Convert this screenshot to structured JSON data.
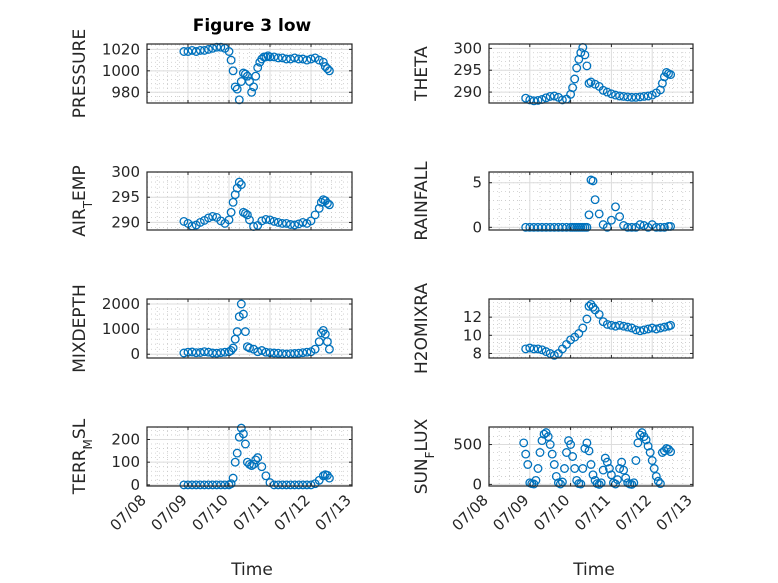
{
  "figure": {
    "title": "Figure 3 low",
    "xlabel": "Time",
    "marker_color": "#0072BD",
    "grid": true,
    "minor_grid": true
  },
  "chart_data": [
    {
      "type": "scatter",
      "ylabel": "PRESSURE",
      "ylim": [
        970,
        1025
      ],
      "yticks": [
        980,
        1000,
        1020
      ],
      "xlim": [
        0,
        5
      ],
      "xticks": [],
      "x": [
        0.9,
        1.0,
        1.1,
        1.2,
        1.3,
        1.4,
        1.5,
        1.6,
        1.7,
        1.8,
        1.9,
        2.0,
        2.05,
        2.1,
        2.15,
        2.2,
        2.25,
        2.3,
        2.35,
        2.4,
        2.45,
        2.5,
        2.55,
        2.6,
        2.65,
        2.7,
        2.75,
        2.8,
        2.85,
        2.9,
        2.95,
        3.0,
        3.1,
        3.2,
        3.3,
        3.4,
        3.5,
        3.6,
        3.7,
        3.8,
        3.9,
        4.0,
        4.1,
        4.2,
        4.3,
        4.35,
        4.4,
        4.45
      ],
      "y": [
        1018,
        1018,
        1019,
        1018,
        1019,
        1019,
        1020,
        1021,
        1022,
        1022,
        1021,
        1018,
        1010,
        1000,
        985,
        983,
        973,
        990,
        998,
        997,
        995,
        990,
        980,
        985,
        995,
        1003,
        1008,
        1011,
        1013,
        1013,
        1014,
        1013,
        1013,
        1012,
        1012,
        1011,
        1011,
        1012,
        1011,
        1011,
        1010,
        1011,
        1012,
        1010,
        1008,
        1004,
        1002,
        1000
      ]
    },
    {
      "type": "scatter",
      "ylabel": "THETA",
      "ylim": [
        287.5,
        301
      ],
      "yticks": [
        290,
        295,
        300
      ],
      "xlim": [
        0,
        5
      ],
      "xticks": [],
      "x": [
        0.9,
        1.0,
        1.1,
        1.2,
        1.3,
        1.4,
        1.5,
        1.6,
        1.7,
        1.8,
        1.9,
        2.0,
        2.05,
        2.1,
        2.15,
        2.2,
        2.25,
        2.3,
        2.35,
        2.4,
        2.45,
        2.5,
        2.6,
        2.7,
        2.8,
        2.9,
        3.0,
        3.1,
        3.2,
        3.3,
        3.4,
        3.5,
        3.6,
        3.7,
        3.8,
        3.9,
        4.0,
        4.1,
        4.2,
        4.25,
        4.3,
        4.35,
        4.4,
        4.45
      ],
      "y": [
        288.6,
        288.2,
        288.0,
        288.1,
        288.3,
        288.7,
        289.0,
        289.1,
        288.8,
        288.2,
        288.4,
        289.5,
        291.0,
        293.0,
        295.5,
        297.5,
        299.0,
        300.2,
        298.5,
        296.0,
        292.0,
        292.3,
        291.8,
        291.3,
        290.4,
        290.0,
        289.6,
        289.3,
        289.1,
        289.0,
        288.9,
        288.8,
        288.8,
        288.9,
        289.0,
        289.1,
        289.3,
        289.8,
        290.5,
        292.0,
        293.5,
        294.5,
        294.2,
        294.0
      ]
    },
    {
      "type": "scatter",
      "ylabel": "AIR_TEMP",
      "ylim": [
        288.5,
        300
      ],
      "yticks": [
        290,
        295,
        300
      ],
      "xlim": [
        0,
        5
      ],
      "xticks": [],
      "x": [
        0.9,
        1.0,
        1.1,
        1.2,
        1.3,
        1.4,
        1.5,
        1.6,
        1.7,
        1.8,
        1.9,
        2.0,
        2.05,
        2.1,
        2.15,
        2.2,
        2.25,
        2.3,
        2.35,
        2.4,
        2.45,
        2.5,
        2.6,
        2.7,
        2.8,
        2.9,
        3.0,
        3.1,
        3.2,
        3.3,
        3.4,
        3.5,
        3.6,
        3.7,
        3.8,
        3.9,
        4.0,
        4.1,
        4.2,
        4.25,
        4.3,
        4.35,
        4.4,
        4.45
      ],
      "y": [
        290.2,
        289.8,
        289.3,
        289.5,
        290.0,
        290.4,
        290.9,
        291.2,
        291.0,
        290.3,
        289.8,
        290.5,
        292.0,
        294.0,
        295.5,
        296.8,
        298.0,
        297.5,
        292.0,
        291.8,
        291.5,
        290.5,
        289.2,
        289.4,
        290.3,
        290.6,
        290.5,
        290.2,
        290.0,
        289.8,
        289.8,
        289.6,
        289.5,
        289.7,
        290.0,
        289.8,
        290.3,
        291.5,
        292.8,
        294.0,
        294.5,
        294.3,
        293.8,
        293.5
      ]
    },
    {
      "type": "scatter",
      "ylabel": "RAINFALL",
      "ylim": [
        -0.3,
        6.2
      ],
      "yticks": [
        0,
        5
      ],
      "xlim": [
        0,
        5
      ],
      "xticks": [],
      "x": [
        0.9,
        1.0,
        1.1,
        1.2,
        1.3,
        1.4,
        1.5,
        1.6,
        1.7,
        1.8,
        1.9,
        2.0,
        2.05,
        2.1,
        2.15,
        2.2,
        2.25,
        2.3,
        2.35,
        2.4,
        2.45,
        2.5,
        2.55,
        2.6,
        2.7,
        2.8,
        2.9,
        3.0,
        3.1,
        3.2,
        3.3,
        3.4,
        3.5,
        3.6,
        3.7,
        3.8,
        3.9,
        4.0,
        4.1,
        4.2,
        4.3,
        4.4,
        4.45
      ],
      "y": [
        0,
        0,
        0,
        0,
        0,
        0,
        0,
        0,
        0,
        0,
        0,
        0,
        0,
        0,
        0,
        0,
        0,
        0,
        0,
        0,
        1.4,
        5.3,
        5.2,
        3.1,
        1.5,
        0.3,
        0,
        0.8,
        2.3,
        1.2,
        0.2,
        0,
        0,
        0,
        0.3,
        0.2,
        0,
        0.3,
        0,
        0,
        0,
        0.1,
        0.1
      ]
    },
    {
      "type": "scatter",
      "ylabel": "MIXDEPTH",
      "ylim": [
        -150,
        2200
      ],
      "yticks": [
        0,
        1000,
        2000
      ],
      "xlim": [
        0,
        5
      ],
      "xticks": [],
      "x": [
        0.9,
        1.0,
        1.1,
        1.2,
        1.3,
        1.4,
        1.5,
        1.6,
        1.7,
        1.8,
        1.9,
        2.0,
        2.05,
        2.1,
        2.15,
        2.2,
        2.25,
        2.3,
        2.35,
        2.4,
        2.45,
        2.5,
        2.6,
        2.7,
        2.8,
        2.9,
        3.0,
        3.1,
        3.2,
        3.3,
        3.4,
        3.5,
        3.6,
        3.7,
        3.8,
        3.9,
        4.0,
        4.1,
        4.2,
        4.25,
        4.3,
        4.35,
        4.4,
        4.45
      ],
      "y": [
        50,
        80,
        90,
        60,
        70,
        100,
        80,
        50,
        40,
        60,
        80,
        100,
        150,
        250,
        600,
        900,
        1500,
        2000,
        1600,
        900,
        300,
        250,
        200,
        100,
        150,
        80,
        60,
        50,
        40,
        20,
        10,
        20,
        30,
        40,
        60,
        80,
        100,
        200,
        500,
        850,
        950,
        800,
        500,
        200
      ]
    },
    {
      "type": "scatter",
      "ylabel": "H2OMIXRA",
      "ylim": [
        7.5,
        14
      ],
      "yticks": [
        8,
        10,
        12
      ],
      "xlim": [
        0,
        5
      ],
      "xticks": [],
      "x": [
        0.9,
        1.0,
        1.1,
        1.2,
        1.3,
        1.4,
        1.5,
        1.6,
        1.7,
        1.8,
        1.9,
        2.0,
        2.1,
        2.2,
        2.3,
        2.4,
        2.45,
        2.5,
        2.55,
        2.6,
        2.7,
        2.8,
        2.9,
        3.0,
        3.1,
        3.2,
        3.3,
        3.4,
        3.5,
        3.6,
        3.7,
        3.8,
        3.9,
        4.0,
        4.1,
        4.2,
        4.3,
        4.4,
        4.45
      ],
      "y": [
        8.5,
        8.6,
        8.5,
        8.5,
        8.4,
        8.2,
        8.0,
        7.8,
        8.0,
        8.5,
        9.0,
        9.5,
        9.8,
        10.2,
        10.8,
        11.8,
        13.2,
        13.4,
        13.1,
        12.8,
        12.3,
        11.5,
        11.2,
        11.1,
        11.0,
        11.1,
        11.0,
        10.9,
        10.8,
        10.6,
        10.5,
        10.6,
        10.7,
        10.8,
        10.7,
        10.8,
        10.9,
        11.0,
        11.1
      ]
    },
    {
      "type": "scatter",
      "ylabel": "TERR_MSL",
      "ylim": [
        -5,
        255
      ],
      "yticks": [
        0,
        100,
        200
      ],
      "xlim": [
        0,
        5
      ],
      "xticks": [
        "07/08",
        "07/09",
        "07/10",
        "07/11",
        "07/12",
        "07/13"
      ],
      "x": [
        0.9,
        1.0,
        1.1,
        1.2,
        1.3,
        1.4,
        1.5,
        1.6,
        1.7,
        1.8,
        1.9,
        2.0,
        2.05,
        2.1,
        2.15,
        2.2,
        2.25,
        2.3,
        2.35,
        2.4,
        2.45,
        2.5,
        2.55,
        2.6,
        2.65,
        2.7,
        2.8,
        2.9,
        3.0,
        3.1,
        3.2,
        3.3,
        3.4,
        3.5,
        3.6,
        3.7,
        3.8,
        3.9,
        4.0,
        4.1,
        4.2,
        4.3,
        4.35,
        4.4,
        4.45
      ],
      "y": [
        0,
        0,
        0,
        0,
        0,
        0,
        0,
        0,
        0,
        0,
        0,
        0,
        5,
        30,
        100,
        140,
        210,
        250,
        225,
        180,
        100,
        90,
        85,
        90,
        110,
        120,
        80,
        40,
        10,
        0,
        0,
        0,
        0,
        0,
        0,
        0,
        0,
        0,
        0,
        5,
        20,
        40,
        45,
        42,
        30
      ]
    },
    {
      "type": "scatter",
      "ylabel": "SUN_FLUX",
      "ylim": [
        -20,
        720
      ],
      "yticks": [
        0,
        500
      ],
      "xlim": [
        0,
        5
      ],
      "xticks": [
        "07/08",
        "07/09",
        "07/10",
        "07/11",
        "07/12",
        "07/13"
      ],
      "x": [
        0.85,
        0.9,
        0.95,
        1.0,
        1.05,
        1.1,
        1.15,
        1.2,
        1.25,
        1.3,
        1.35,
        1.4,
        1.45,
        1.5,
        1.55,
        1.6,
        1.65,
        1.7,
        1.75,
        1.8,
        1.85,
        1.9,
        1.95,
        2.0,
        2.05,
        2.1,
        2.15,
        2.2,
        2.25,
        2.3,
        2.35,
        2.4,
        2.45,
        2.5,
        2.55,
        2.6,
        2.65,
        2.7,
        2.75,
        2.8,
        2.85,
        2.9,
        2.95,
        3.0,
        3.05,
        3.1,
        3.15,
        3.2,
        3.25,
        3.3,
        3.35,
        3.4,
        3.45,
        3.5,
        3.55,
        3.6,
        3.65,
        3.7,
        3.75,
        3.8,
        3.85,
        3.9,
        3.95,
        4.0,
        4.05,
        4.1,
        4.15,
        4.2,
        4.25,
        4.3,
        4.35,
        4.4,
        4.45
      ],
      "y": [
        520,
        380,
        250,
        20,
        10,
        5,
        50,
        200,
        400,
        550,
        630,
        650,
        600,
        500,
        380,
        250,
        100,
        20,
        5,
        30,
        200,
        400,
        550,
        500,
        350,
        200,
        50,
        10,
        5,
        200,
        450,
        520,
        420,
        250,
        120,
        50,
        10,
        0,
        20,
        180,
        330,
        280,
        200,
        120,
        20,
        5,
        60,
        200,
        280,
        180,
        80,
        20,
        5,
        0,
        20,
        300,
        520,
        620,
        650,
        600,
        560,
        480,
        400,
        300,
        200,
        100,
        40,
        10,
        400,
        420,
        450,
        440,
        410
      ]
    }
  ]
}
